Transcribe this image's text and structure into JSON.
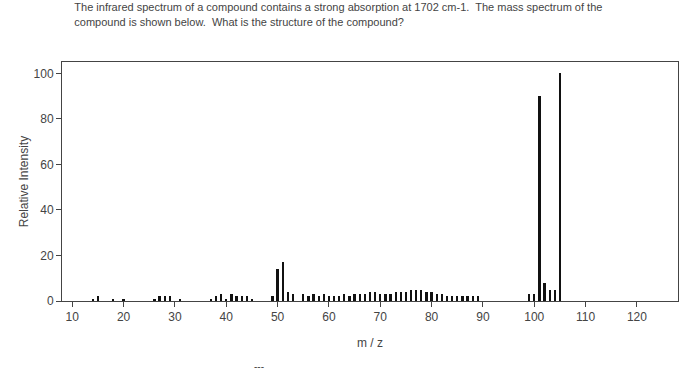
{
  "chart_data": {
    "type": "stem",
    "title": "The infrared spectrum of a compound contains a strong absorption at 1702 cm-1.  The mass spectrum of the",
    "subtitle": "compound is shown below.  What is the structure of the compound?",
    "x_label": "m / z",
    "y_label": "Relative Intensity",
    "annotations": [
      "---"
    ],
    "x": [
      14,
      15,
      18,
      20,
      26,
      27,
      28,
      29,
      31,
      37,
      38,
      39,
      40,
      41,
      42,
      43,
      44,
      45,
      49,
      50,
      51,
      52,
      53,
      55,
      56,
      57,
      58,
      59,
      60,
      61,
      62,
      63,
      64,
      65,
      66,
      67,
      68,
      69,
      70,
      71,
      72,
      73,
      74,
      75,
      76,
      77,
      78,
      79,
      80,
      81,
      82,
      83,
      84,
      85,
      86,
      87,
      88,
      89,
      99,
      100,
      101,
      102,
      103,
      104,
      105
    ],
    "values": [
      1,
      2,
      1,
      1,
      1,
      2,
      2,
      2,
      1,
      1,
      2,
      3,
      1,
      3,
      2,
      2,
      2,
      1,
      2,
      14,
      17,
      4,
      3,
      3,
      2,
      3,
      2,
      3,
      2,
      2,
      2,
      3,
      2,
      3,
      3,
      3,
      4,
      4,
      3,
      3,
      3,
      4,
      4,
      4,
      5,
      5,
      5,
      4,
      4,
      3,
      3,
      2,
      2,
      2,
      2,
      2,
      2,
      2,
      3,
      3,
      90,
      8,
      5,
      5,
      100
    ],
    "color": "#111111",
    "xlim": [
      8,
      128
    ],
    "ylim": [
      0,
      105
    ],
    "xticks": [
      10,
      20,
      30,
      40,
      50,
      60,
      70,
      80,
      90,
      100,
      110,
      120
    ],
    "yticks": [
      0,
      20,
      40,
      60,
      80,
      100
    ],
    "grid": false
  }
}
